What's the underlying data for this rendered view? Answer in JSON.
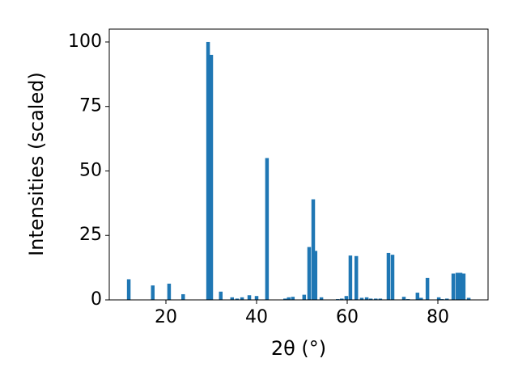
{
  "chart_data": {
    "type": "bar",
    "xlabel": "2θ (°)",
    "ylabel": "Intensities (scaled)",
    "color": "#1f77b4",
    "x": [
      11.8,
      17.1,
      20.7,
      23.8,
      29.3,
      30.0,
      32.1,
      34.6,
      35.7,
      36.8,
      38.4,
      40.0,
      42.3,
      46.3,
      47.1,
      48.0,
      50.5,
      51.6,
      52.5,
      53.0,
      54.3,
      57.9,
      58.8,
      59.8,
      60.7,
      62.0,
      63.2,
      64.3,
      65.2,
      66.3,
      67.3,
      69.1,
      70.0,
      72.5,
      73.4,
      75.5,
      76.3,
      77.7,
      80.2,
      80.9,
      82.0,
      83.4,
      84.3,
      85.0,
      85.7,
      86.8
    ],
    "values": [
      8,
      5.6,
      6.3,
      2.2,
      100,
      95,
      3.2,
      1,
      0.5,
      1,
      1.8,
      1.5,
      55,
      0.5,
      1,
      1.2,
      2,
      20.5,
      39,
      19,
      1,
      0.3,
      0.5,
      1.5,
      17.2,
      17,
      0.8,
      1,
      0.5,
      0.5,
      0.5,
      18.2,
      17.5,
      1.2,
      0.3,
      2.8,
      0.8,
      8.5,
      1,
      0.3,
      0.5,
      10.2,
      10.5,
      10.5,
      10.2,
      0.8
    ],
    "xlim": [
      7.5,
      91.07
    ],
    "ylim": [
      0,
      105
    ],
    "xticks": [
      20,
      40,
      60,
      80
    ],
    "yticks": [
      0,
      25,
      50,
      75,
      100
    ]
  }
}
